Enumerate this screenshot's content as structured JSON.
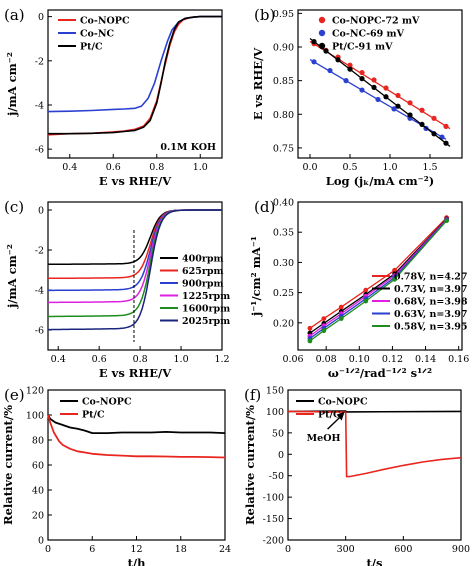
{
  "chart_data": [
    {
      "panel": "(a)",
      "type": "line",
      "xlabel": "E vs RHE/V",
      "ylabel": "j/mA cm⁻²",
      "xlim": [
        0.3,
        1.1
      ],
      "ylim": [
        -6.4,
        0.3
      ],
      "xticks": [
        0.4,
        0.6,
        0.8,
        1.0
      ],
      "xtick_labels": [
        "0.4",
        "0.6",
        "0.8",
        "1.0"
      ],
      "yticks": [
        0,
        -2,
        -4,
        -6
      ],
      "ytick_labels": [
        "0",
        "-2",
        "-4",
        "-6"
      ],
      "annotation": "0.1M KOH",
      "legend": "top-left",
      "series": [
        {
          "name": "Co-NOPC",
          "color": "#e8251f",
          "x": [
            0.3,
            0.4,
            0.5,
            0.6,
            0.65,
            0.7,
            0.74,
            0.77,
            0.8,
            0.83,
            0.86,
            0.88,
            0.9,
            0.92,
            0.95,
            1.0,
            1.05,
            1.1
          ],
          "y": [
            -5.35,
            -5.3,
            -5.28,
            -5.22,
            -5.18,
            -5.1,
            -4.95,
            -4.6,
            -3.8,
            -2.5,
            -1.3,
            -0.7,
            -0.35,
            -0.15,
            -0.05,
            0,
            0,
            0
          ]
        },
        {
          "name": "Co-NC",
          "color": "#2b3fd1",
          "x": [
            0.3,
            0.4,
            0.5,
            0.6,
            0.65,
            0.7,
            0.73,
            0.76,
            0.79,
            0.82,
            0.85,
            0.87,
            0.9,
            0.93,
            0.97,
            1.0,
            1.05,
            1.1
          ],
          "y": [
            -4.3,
            -4.28,
            -4.25,
            -4.2,
            -4.18,
            -4.15,
            -4.05,
            -3.7,
            -3.0,
            -2.0,
            -1.1,
            -0.6,
            -0.25,
            -0.08,
            -0.02,
            0,
            0,
            0
          ]
        },
        {
          "name": "Pt/C",
          "color": "#000000",
          "x": [
            0.3,
            0.4,
            0.5,
            0.6,
            0.65,
            0.7,
            0.74,
            0.77,
            0.8,
            0.82,
            0.84,
            0.86,
            0.88,
            0.9,
            0.93,
            0.97,
            1.0,
            1.05,
            1.1
          ],
          "y": [
            -5.3,
            -5.3,
            -5.28,
            -5.25,
            -5.2,
            -5.15,
            -5.0,
            -4.7,
            -3.9,
            -3.0,
            -2.0,
            -1.2,
            -0.6,
            -0.25,
            -0.08,
            -0.02,
            0,
            0,
            0
          ]
        }
      ]
    },
    {
      "panel": "(b)",
      "type": "scatter",
      "xlabel": "Log (jₖ/mA cm⁻²)",
      "ylabel": "E vs RHE/V",
      "xlim": [
        -0.15,
        1.9
      ],
      "ylim": [
        0.735,
        0.955
      ],
      "xticks": [
        0.0,
        0.5,
        1.0,
        1.5
      ],
      "xtick_labels": [
        "0.0",
        "0.5",
        "1.0",
        "1.5"
      ],
      "yticks": [
        0.75,
        0.8,
        0.85,
        0.9,
        0.95
      ],
      "ytick_labels": [
        "0.75",
        "0.80",
        "0.85",
        "0.90",
        "0.95"
      ],
      "legend": "top-right",
      "series": [
        {
          "name": "Co-NOPC-72 mV",
          "color": "#e8251f",
          "x": [
            0.05,
            0.2,
            0.35,
            0.5,
            0.65,
            0.8,
            0.95,
            1.1,
            1.25,
            1.4,
            1.55,
            1.7
          ],
          "y": [
            0.905,
            0.895,
            0.885,
            0.873,
            0.862,
            0.851,
            0.839,
            0.828,
            0.817,
            0.806,
            0.794,
            0.782
          ]
        },
        {
          "name": "Co-NC-69 mV",
          "color": "#2b3fd1",
          "x": [
            0.05,
            0.25,
            0.45,
            0.65,
            0.85,
            1.05,
            1.25,
            1.45,
            1.65
          ],
          "y": [
            0.878,
            0.865,
            0.85,
            0.836,
            0.822,
            0.808,
            0.794,
            0.779,
            0.766
          ]
        },
        {
          "name": "Pt/C-91 mV",
          "color": "#000000",
          "x": [
            0.05,
            0.2,
            0.35,
            0.5,
            0.65,
            0.8,
            0.95,
            1.1,
            1.25,
            1.4,
            1.55,
            1.7
          ],
          "y": [
            0.908,
            0.894,
            0.881,
            0.867,
            0.853,
            0.84,
            0.826,
            0.812,
            0.799,
            0.785,
            0.771,
            0.757
          ]
        }
      ]
    },
    {
      "panel": "(c)",
      "type": "line",
      "xlabel": "E vs RHE/V",
      "ylabel": "j/mA cm⁻²",
      "xlim": [
        0.35,
        1.2
      ],
      "ylim": [
        -7.0,
        0.4
      ],
      "xticks": [
        0.4,
        0.6,
        0.8,
        1.0,
        1.2
      ],
      "xtick_labels": [
        "0.4",
        "0.6",
        "0.8",
        "1.0",
        "1.2"
      ],
      "yticks": [
        0,
        -2,
        -4,
        -6
      ],
      "ytick_labels": [
        "0",
        "-2",
        "-4",
        "-6"
      ],
      "reference_line_x": 0.77,
      "legend": "right",
      "series": [
        {
          "name": "400rpm",
          "color": "#000000",
          "plateau": -2.7
        },
        {
          "name": "625rpm",
          "color": "#e8251f",
          "plateau": -3.4
        },
        {
          "name": "900rpm",
          "color": "#2b3fd1",
          "plateau": -4.0
        },
        {
          "name": "1225rpm",
          "color": "#e020e0",
          "plateau": -4.6
        },
        {
          "name": "1600rpm",
          "color": "#1e8c1e",
          "plateau": -5.3
        },
        {
          "name": "2025rpm",
          "color": "#1a237e",
          "plateau": -5.95
        }
      ]
    },
    {
      "panel": "(d)",
      "type": "line",
      "xlabel": "ω⁻¹ᐟ²/rad⁻¹ᐟ² s¹ᐟ²",
      "ylabel": "j⁻¹/cm² mA⁻¹",
      "xlim": [
        0.063,
        0.162
      ],
      "ylim": [
        0.155,
        0.4
      ],
      "xticks": [
        0.08,
        0.1,
        0.12,
        0.14,
        0.16
      ],
      "xtick_labels": [
        "0.08",
        "0.10",
        "0.12",
        "0.14",
        "0.16"
      ],
      "xticks_extra": [
        0.06
      ],
      "xticks_extra_labels": [
        "0.06"
      ],
      "yticks": [
        0.2,
        0.25,
        0.3,
        0.35,
        0.4
      ],
      "ytick_labels": [
        "0.20",
        "0.25",
        "0.30",
        "0.35",
        "0.40"
      ],
      "x": [
        0.0702,
        0.0786,
        0.0891,
        0.1039,
        0.1213,
        0.1527
      ],
      "legend": "bottom-right",
      "series": [
        {
          "name": "0.78V, n=4.27",
          "color": "#e8251f",
          "y": [
            0.191,
            0.207,
            0.226,
            0.254,
            0.287,
            0.374
          ]
        },
        {
          "name": "0.73V, n=3.97",
          "color": "#000000",
          "y": [
            0.183,
            0.199,
            0.219,
            0.247,
            0.281,
            0.372
          ]
        },
        {
          "name": "0.68V, n=3.98",
          "color": "#e020e0",
          "y": [
            0.178,
            0.195,
            0.215,
            0.244,
            0.278,
            0.371
          ]
        },
        {
          "name": "0.63V, n=3.97",
          "color": "#2b3fd1",
          "y": [
            0.174,
            0.191,
            0.211,
            0.24,
            0.275,
            0.37
          ]
        },
        {
          "name": "0.58V, n=3.95",
          "color": "#1e8c1e",
          "y": [
            0.17,
            0.187,
            0.207,
            0.236,
            0.272,
            0.369
          ]
        }
      ]
    },
    {
      "panel": "(e)",
      "type": "line",
      "xlabel": "t/h",
      "ylabel": "Relative current/%",
      "xlim": [
        0,
        24
      ],
      "ylim": [
        0,
        120
      ],
      "xticks": [
        0,
        6,
        12,
        18,
        24
      ],
      "xtick_labels": [
        "0",
        "6",
        "12",
        "18",
        "24"
      ],
      "yticks": [
        0,
        20,
        40,
        60,
        80,
        100,
        120
      ],
      "ytick_labels": [
        "0",
        "20",
        "40",
        "60",
        "80",
        "100",
        "120"
      ],
      "legend": "top-left",
      "series": [
        {
          "name": "Co-NOPC",
          "color": "#000000",
          "x": [
            0,
            0.3,
            1,
            2,
            3,
            4,
            5,
            6,
            8,
            10,
            12,
            14,
            16,
            18,
            20,
            22,
            24
          ],
          "y": [
            100,
            97,
            94,
            92,
            90,
            89,
            87.5,
            85.5,
            85.5,
            86,
            86,
            86,
            86.5,
            86,
            86,
            86,
            85.5
          ]
        },
        {
          "name": "Pt/C",
          "color": "#e8251f",
          "x": [
            0,
            0.3,
            0.8,
            1.5,
            2,
            3,
            4,
            5,
            6,
            8,
            10,
            12,
            14,
            16,
            18,
            20,
            22,
            24
          ],
          "y": [
            100,
            94,
            86,
            79,
            76,
            73,
            71,
            70,
            69,
            68,
            67.5,
            67,
            67,
            66.8,
            66.5,
            66.5,
            66.3,
            66
          ]
        }
      ]
    },
    {
      "panel": "(f)",
      "type": "line",
      "xlabel": "t/s",
      "ylabel": "Relative current/%",
      "xlim": [
        0,
        900
      ],
      "ylim": [
        -200,
        150
      ],
      "xticks": [
        0,
        300,
        600,
        900
      ],
      "xtick_labels": [
        "0",
        "300",
        "600",
        "900"
      ],
      "yticks": [
        150,
        100,
        50,
        0,
        -50,
        -100,
        -150,
        -200
      ],
      "ytick_labels": [
        "150",
        "100",
        "50",
        "0",
        "-50",
        "-100",
        "-150",
        "-200"
      ],
      "annotation": "MeOH",
      "annotation_arrow_x": 300,
      "legend": "top-left",
      "series": [
        {
          "name": "Co-NOPC",
          "color": "#000000",
          "x": [
            0,
            300,
            301,
            900
          ],
          "y": [
            100,
            101,
            99,
            100
          ]
        },
        {
          "name": "Pt/C",
          "color": "#e8251f",
          "x": [
            0,
            100,
            200,
            295,
            300,
            305,
            320,
            400,
            500,
            600,
            700,
            800,
            900
          ],
          "y": [
            100,
            99.5,
            99,
            98.5,
            98,
            -52,
            -52,
            -45,
            -35,
            -26,
            -18,
            -12,
            -8
          ]
        }
      ]
    }
  ]
}
